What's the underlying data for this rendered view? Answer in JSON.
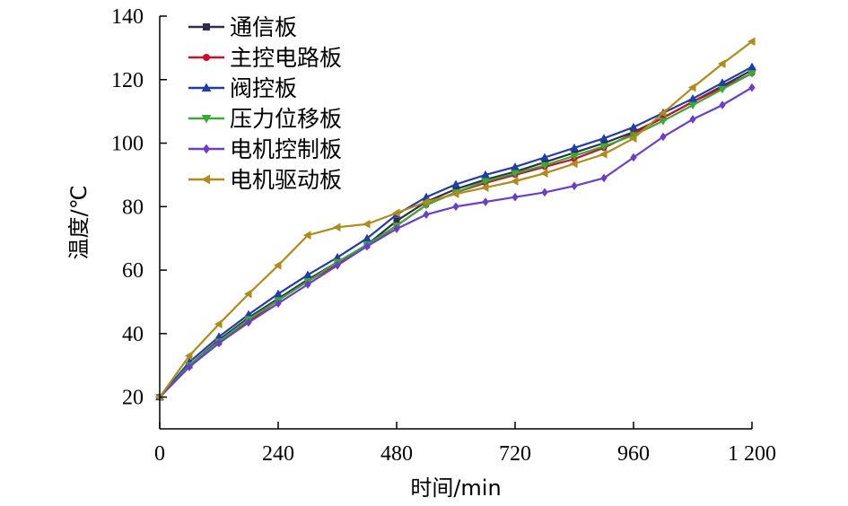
{
  "chart_data": {
    "type": "line",
    "xlabel": "时间/min",
    "ylabel": "温度/℃",
    "xlim": [
      0,
      1200
    ],
    "ylim": [
      10,
      140
    ],
    "xticks": [
      0,
      240,
      480,
      720,
      960,
      1200
    ],
    "xtick_labels": [
      "0",
      "240",
      "480",
      "720",
      "960",
      "1 200"
    ],
    "yticks": [
      20,
      40,
      60,
      80,
      100,
      120,
      140
    ],
    "ytick_labels": [
      "20",
      "40",
      "60",
      "80",
      "100",
      "120",
      "140"
    ],
    "grid": false,
    "legend_position": "top-left",
    "series": [
      {
        "name": "通信板",
        "color": "#2e2e48",
        "marker": "square",
        "x": [
          0,
          60,
          120,
          180,
          240,
          300,
          360,
          420,
          480,
          540,
          600,
          660,
          720,
          780,
          840,
          900,
          960,
          1020,
          1080,
          1140,
          1200
        ],
        "y": [
          20,
          30,
          38,
          45,
          51,
          57,
          62.5,
          68,
          75.5,
          81.5,
          85.5,
          88.5,
          91,
          94,
          97,
          100,
          103.5,
          108,
          113,
          118,
          123
        ]
      },
      {
        "name": "主控电路板",
        "color": "#c8102e",
        "marker": "circle",
        "x": [
          0,
          60,
          120,
          180,
          240,
          300,
          360,
          420,
          480,
          540,
          600,
          660,
          720,
          780,
          840,
          900,
          960,
          1020,
          1080,
          1140,
          1200
        ],
        "y": [
          20,
          30,
          37,
          44,
          50.5,
          56.5,
          62,
          67.5,
          74,
          80.5,
          84.5,
          87.5,
          90,
          92.5,
          95,
          98.5,
          103,
          108,
          113,
          117.5,
          122
        ]
      },
      {
        "name": "阀控板",
        "color": "#1f3fa8",
        "marker": "triangle",
        "x": [
          0,
          60,
          120,
          180,
          240,
          300,
          360,
          420,
          480,
          540,
          600,
          660,
          720,
          780,
          840,
          900,
          960,
          1020,
          1080,
          1140,
          1200
        ],
        "y": [
          20,
          31,
          39,
          46,
          52.5,
          58.5,
          64,
          70,
          77.5,
          83,
          87,
          90,
          92.5,
          95.5,
          98.5,
          101.5,
          105,
          109.5,
          114,
          119,
          124
        ]
      },
      {
        "name": "压力位移板",
        "color": "#3aaa35",
        "marker": "triangle-down",
        "x": [
          0,
          60,
          120,
          180,
          240,
          300,
          360,
          420,
          480,
          540,
          600,
          660,
          720,
          780,
          840,
          900,
          960,
          1020,
          1080,
          1140,
          1200
        ],
        "y": [
          20,
          30,
          37.5,
          44.5,
          50.5,
          56.5,
          62.5,
          68,
          74,
          80.5,
          84.5,
          88,
          90.5,
          93,
          96,
          99,
          102.5,
          107,
          112,
          117,
          122
        ]
      },
      {
        "name": "电机控制板",
        "color": "#6a3fc8",
        "marker": "diamond",
        "x": [
          0,
          60,
          120,
          180,
          240,
          300,
          360,
          420,
          480,
          540,
          600,
          660,
          720,
          780,
          840,
          900,
          960,
          1020,
          1080,
          1140,
          1200
        ],
        "y": [
          20,
          29.5,
          37,
          43.5,
          49.5,
          55.5,
          61.5,
          67.5,
          73,
          77.5,
          80,
          81.5,
          83,
          84.5,
          86.5,
          89,
          95.5,
          102,
          107.5,
          112,
          117.5
        ]
      },
      {
        "name": "电机驱动板",
        "color": "#b08b1a",
        "marker": "left-triangle",
        "x": [
          0,
          60,
          120,
          180,
          240,
          300,
          360,
          420,
          480,
          540,
          600,
          660,
          720,
          780,
          840,
          900,
          960,
          1020,
          1080,
          1140,
          1200
        ],
        "y": [
          20,
          33,
          43,
          52.5,
          61.5,
          71,
          73.5,
          74.5,
          78,
          81.5,
          84,
          86,
          88,
          90.5,
          93.5,
          96.5,
          101.5,
          109.5,
          117.5,
          125,
          132
        ]
      }
    ]
  }
}
